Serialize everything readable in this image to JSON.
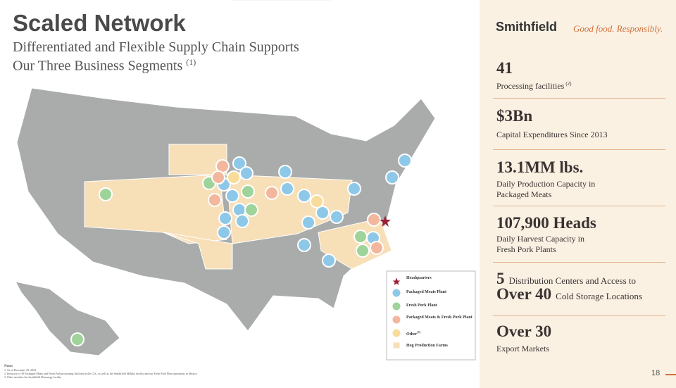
{
  "header": {
    "title": "Scaled Network",
    "subtitle": [
      "Differentiated and Flexible Supply Chain Supports",
      "Our Three Business Segments"
    ],
    "subtitle_note": "(1)"
  },
  "brand": {
    "name": "Smithfield",
    "tagline": "Good food. Responsibly."
  },
  "stats": [
    {
      "value": "41",
      "label": "Processing facilities",
      "note": "(2)"
    },
    {
      "value": "$3Bn",
      "label": "Capital Expenditures Since 2013"
    },
    {
      "value": "13.1MM lbs.",
      "label": [
        "Daily Production Capacity in",
        "Packaged Meats"
      ]
    },
    {
      "value": "107,900 Heads",
      "label": [
        "Daily Harvest Capacity in",
        "Fresh Pork Plants"
      ]
    },
    {
      "value": "5",
      "label": "Distribution Centers and Access to",
      "value2": "Over 40",
      "label2": "Cold Storage Locations"
    },
    {
      "value": "Over 30",
      "label": "Export Markets"
    }
  ],
  "legend": [
    "Headquarters",
    "Packaged Meats Plant",
    "Fresh Pork Plant",
    "Packaged Meats & Fresh Pork Plant",
    "Other",
    "Hog Production Farms"
  ],
  "legend_note": "(3)",
  "notes": {
    "heading": "Notes",
    "items": [
      "1. As of December 29, 2024",
      "2. Inclusive of 39 Packaged Meats and Fresh Pork processing facilities in the U.S., as well as the Smithfield Mehiko facility and our Fresh Pork Plant operations in Mexico",
      "3. Other includes the Smithfield Bioenergy facility"
    ]
  },
  "page_number": "18"
}
